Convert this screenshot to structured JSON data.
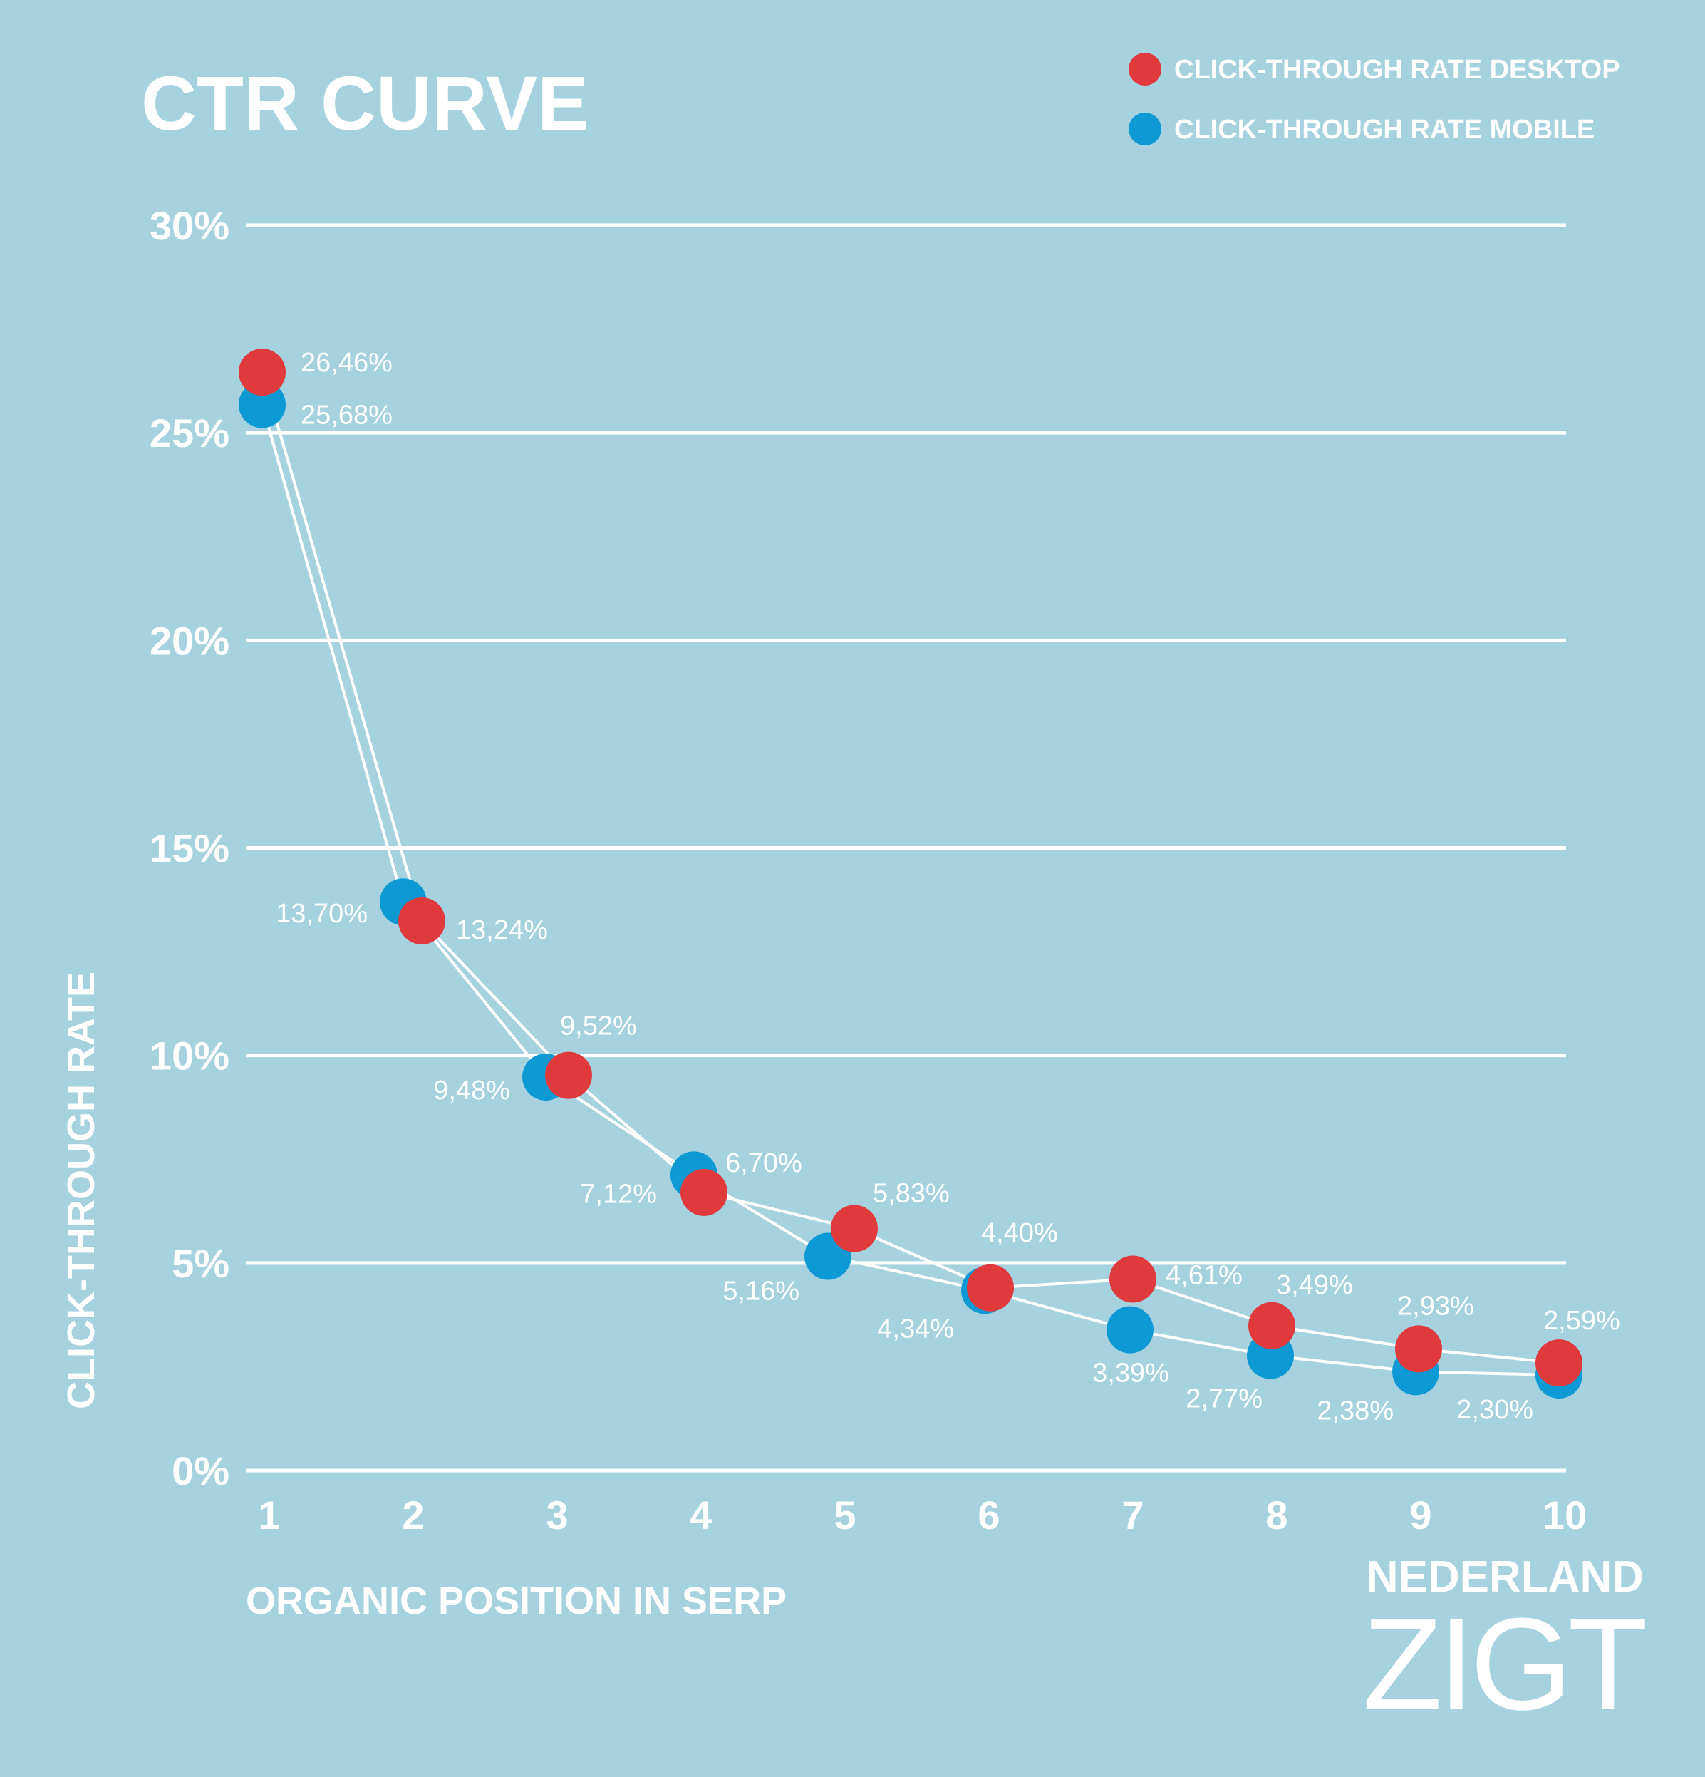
{
  "chart_data": {
    "type": "line",
    "title": "CTR CURVE",
    "xlabel": "ORGANIC POSITION IN SERP",
    "ylabel": "CLICK-THROUGH RATE",
    "x": [
      "1",
      "2",
      "3",
      "4",
      "5",
      "6",
      "7",
      "8",
      "9",
      "10"
    ],
    "yticks": [
      "0%",
      "5%",
      "10%",
      "15%",
      "20%",
      "25%",
      "30%"
    ],
    "ylim": [
      0,
      30
    ],
    "grid": true,
    "legend_position": "top-right",
    "series": [
      {
        "name": "CLICK-THROUGH RATE DESKTOP",
        "color": "#e03a3c",
        "values": [
          26.46,
          13.24,
          9.52,
          6.7,
          5.83,
          4.4,
          4.61,
          3.49,
          2.93,
          2.59
        ],
        "labels": [
          "26,46%",
          "13,24%",
          "9,52%",
          "6,70%",
          "5,83%",
          "4,40%",
          "4,61%",
          "3,49%",
          "2,93%",
          "2,59%"
        ]
      },
      {
        "name": "CLICK-THROUGH RATE MOBILE",
        "color": "#0d9ad4",
        "values": [
          25.68,
          13.7,
          9.48,
          7.12,
          5.16,
          4.34,
          3.39,
          2.77,
          2.38,
          2.3
        ],
        "labels": [
          "25,68%",
          "13,70%",
          "9,48%",
          "7,12%",
          "5,16%",
          "4,34%",
          "3,39%",
          "2,77%",
          "2,38%",
          "2,30%"
        ]
      }
    ]
  },
  "branding": {
    "line1": "NEDERLAND",
    "line2": "ZIGT"
  },
  "colors": {
    "background": "#a6d2df",
    "text": "#ffffff",
    "gridline": "#ffffff"
  }
}
